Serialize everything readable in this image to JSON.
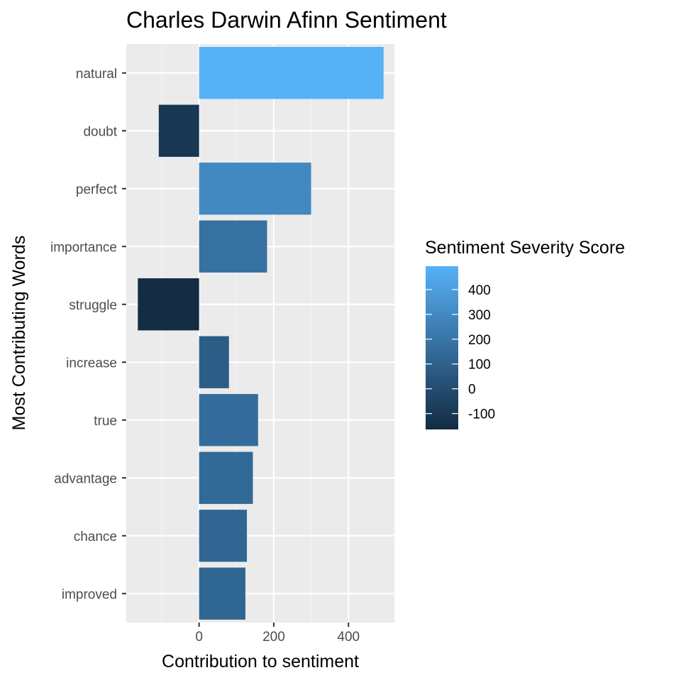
{
  "chart_data": {
    "type": "bar",
    "orientation": "horizontal",
    "title": "Charles Darwin Afinn Sentiment",
    "xlabel": "Contribution to sentiment",
    "ylabel": "Most Contributing Words",
    "categories": [
      "natural",
      "doubt",
      "perfect",
      "importance",
      "struggle",
      "increase",
      "true",
      "advantage",
      "chance",
      "improved"
    ],
    "values": [
      494,
      -108,
      300,
      182,
      -164,
      80,
      158,
      144,
      128,
      124
    ],
    "xlim": [
      -195,
      523
    ],
    "xticks": [
      0,
      200,
      400
    ],
    "grid": true,
    "legend": {
      "title": "Sentiment Severity Score",
      "placement": "right",
      "type": "colorbar",
      "ticks": [
        400,
        300,
        200,
        100,
        0,
        -100
      ],
      "range": [
        -164,
        494
      ],
      "color_low": "#132B43",
      "color_high": "#56B1F7"
    },
    "colors": {
      "panel": "#EBEBEB",
      "grid_major": "#FFFFFF",
      "grid_minor": "#F5F5F5"
    }
  }
}
